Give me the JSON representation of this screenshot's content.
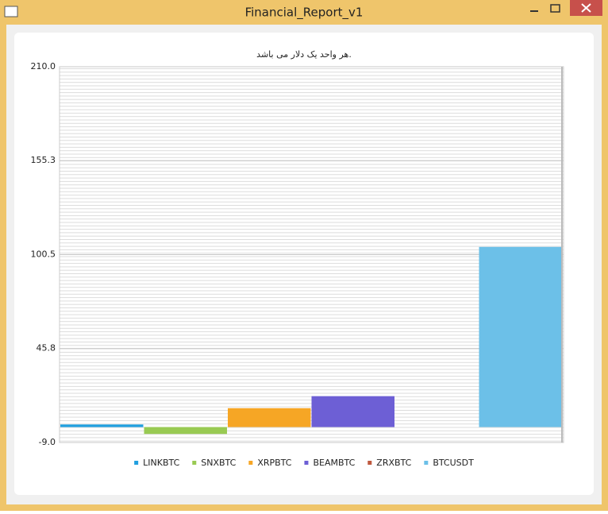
{
  "window": {
    "title": "Financial_Report_v1"
  },
  "chart_data": {
    "type": "bar",
    "title": "هر واحد یک دلار می باشد.",
    "series": [
      {
        "name": "LINKBTC",
        "color": "#209fdf",
        "values": [
          1.5
        ]
      },
      {
        "name": "SNXBTC",
        "color": "#99ca53",
        "values": [
          -4
        ]
      },
      {
        "name": "XRPBTC",
        "color": "#f6a625",
        "values": [
          11
        ]
      },
      {
        "name": "BEAMBTC",
        "color": "#6d5fd5",
        "values": [
          18
        ]
      },
      {
        "name": "ZRXBTC",
        "color": "#bf593e",
        "values": [
          0
        ]
      },
      {
        "name": "BTCUSDT",
        "color": "#6cc0e8",
        "values": [
          105
        ]
      }
    ],
    "ylim": [
      -9,
      210
    ],
    "yticks": [
      {
        "value": -9,
        "label": "-9.0"
      },
      45.8,
      100.5,
      155.3,
      {
        "value": 210,
        "label": "210.0"
      }
    ],
    "grid": true,
    "legend": "bottom"
  }
}
